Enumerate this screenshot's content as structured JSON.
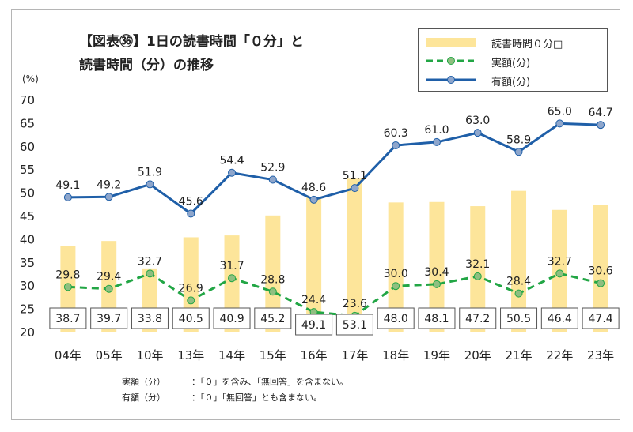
{
  "title": {
    "line1": "【図表㊱】1日の読書時間「０分」と",
    "line2": "読書時間（分）の推移"
  },
  "chart_data": {
    "type": "bar+line",
    "categories": [
      "04年",
      "05年",
      "10年",
      "13年",
      "14年",
      "15年",
      "16年",
      "17年",
      "18年",
      "19年",
      "20年",
      "21年",
      "22年",
      "23年"
    ],
    "ylabel": "(%)",
    "ylim": [
      20,
      70
    ],
    "yticks": [
      20,
      25,
      30,
      35,
      40,
      45,
      50,
      55,
      60,
      65,
      70
    ],
    "grid": false,
    "legend_position": "top-right",
    "series": [
      {
        "name": "読書時間０分□",
        "type": "bar",
        "color": "#fde59a",
        "values": [
          38.7,
          39.7,
          33.8,
          40.5,
          40.9,
          45.2,
          49.1,
          53.1,
          48.0,
          48.1,
          47.2,
          50.5,
          46.4,
          47.4
        ],
        "labels": [
          "38.7",
          "39.7",
          "33.8",
          "40.5",
          "40.9",
          "45.2",
          "49.1",
          "53.1",
          "48.0",
          "48.1",
          "47.2",
          "50.5",
          "46.4",
          "47.4"
        ]
      },
      {
        "name": "実額(分)",
        "type": "line",
        "style": "dashed",
        "color": "#22a645",
        "marker_color": "#8fbf80",
        "values": [
          29.8,
          29.4,
          32.7,
          26.9,
          31.7,
          28.8,
          24.4,
          23.6,
          30.0,
          30.4,
          32.1,
          28.4,
          32.7,
          30.6
        ],
        "labels": [
          "29.8",
          "29.4",
          "32.7",
          "26.9",
          "31.7",
          "28.8",
          "24.4",
          "23.6",
          "30.0",
          "30.4",
          "32.1",
          "28.4",
          "32.7",
          "30.6"
        ]
      },
      {
        "name": "有額(分)",
        "type": "line",
        "style": "solid",
        "color": "#1f5fa8",
        "marker_color": "#8ea6cc",
        "values": [
          49.1,
          49.2,
          51.9,
          45.6,
          54.4,
          52.9,
          48.6,
          51.1,
          60.3,
          61.0,
          63.0,
          58.9,
          65.0,
          64.7
        ],
        "labels": [
          "49.1",
          "49.2",
          "51.9",
          "45.6",
          "54.4",
          "52.9",
          "48.6",
          "51.1",
          "60.3",
          "61.0",
          "63.0",
          "58.9",
          "65.0",
          "64.7"
        ]
      }
    ]
  },
  "notes": [
    {
      "label": "実額（分）",
      "text": "：「０」を含み、「無回答」を含まない。"
    },
    {
      "label": "有額（分）",
      "text": "：「０」「無回答」とも含まない。"
    }
  ]
}
